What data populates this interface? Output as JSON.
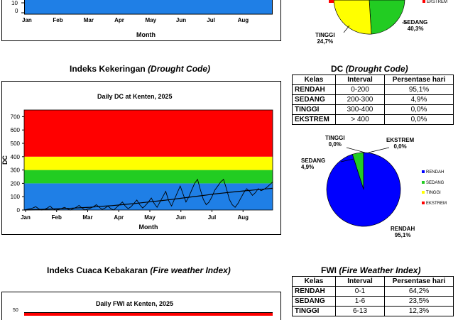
{
  "colors": {
    "blue": "#1f7fe6",
    "green": "#22cc22",
    "yellow": "#ffff00",
    "red": "#ff0000",
    "pie_blue": "#0000ff"
  },
  "top_chart": {
    "x_ticks": [
      "Jan",
      "Feb",
      "Mar",
      "Apr",
      "May",
      "Jun",
      "Jul",
      "Aug"
    ],
    "xlabel": "Month",
    "y_tick": "10",
    "y_tick2": "0"
  },
  "top_pie": {
    "labels": [
      {
        "name": "TINGGI",
        "pct": "24,7%"
      },
      {
        "name": "SEDANG",
        "pct": "40,3%"
      }
    ],
    "legend_partial": "EKSTREM"
  },
  "dc": {
    "section_title": "Indeks Kekeringan",
    "section_title_it": "(Drought Code)",
    "table_title": "DC",
    "table_title_it": "(Drought Code)",
    "headers": [
      "Kelas",
      "Interval",
      "Persentase hari"
    ],
    "rows": [
      [
        "RENDAH",
        "0-200",
        "95,1%"
      ],
      [
        "SEDANG",
        "200-300",
        "4,9%"
      ],
      [
        "TINGGI",
        "300-400",
        "0,0%"
      ],
      [
        "EKSTREM",
        "> 400",
        "0,0%"
      ]
    ],
    "pie_labels": [
      {
        "name": "TINGGI",
        "pct": "0,0%"
      },
      {
        "name": "EKSTREM",
        "pct": "0,0%"
      },
      {
        "name": "SEDANG",
        "pct": "4,9%"
      },
      {
        "name": "RENDAH",
        "pct": "95,1%"
      }
    ],
    "legend": [
      "RENDAH",
      "SEDANG",
      "TINGGI",
      "EKSTREM"
    ]
  },
  "fwi": {
    "section_title": "Indeks Cuaca Kebakaran",
    "section_title_it": "(Fire weather Index)",
    "table_title": "FWI",
    "table_title_it": "(Fire Weather Index)",
    "headers": [
      "Kelas",
      "Interval",
      "Persentase hari"
    ],
    "rows": [
      [
        "RENDAH",
        "0-1",
        "64,2%"
      ],
      [
        "SEDANG",
        "1-6",
        "23,5%"
      ],
      [
        "TINGGI",
        "6-13",
        "12,3%"
      ]
    ]
  },
  "chart_data": [
    {
      "type": "line",
      "title": "Daily DC at Kenten, 2025",
      "xlabel": "Month",
      "ylabel": "DC",
      "ylim": [
        0,
        750
      ],
      "yticks": [
        0,
        100,
        200,
        300,
        400,
        500,
        600,
        700
      ],
      "x_ticks": [
        "Jan",
        "Feb",
        "Mar",
        "Apr",
        "May",
        "Jun",
        "Jul",
        "Aug"
      ],
      "bands": [
        {
          "from": 0,
          "to": 200,
          "color": "#1f7fe6"
        },
        {
          "from": 200,
          "to": 300,
          "color": "#22cc22"
        },
        {
          "from": 300,
          "to": 400,
          "color": "#ffff00"
        },
        {
          "from": 400,
          "to": 750,
          "color": "#ff0000"
        }
      ],
      "series": [
        {
          "name": "",
          "values": [
            0,
            5,
            10,
            15,
            25,
            10,
            0,
            5,
            15,
            30,
            8,
            0,
            5,
            12,
            20,
            8,
            0,
            10,
            20,
            35,
            15,
            0,
            8,
            15,
            25,
            40,
            20,
            5,
            15,
            30,
            10,
            0,
            20,
            40,
            60,
            30,
            10,
            25,
            50,
            75,
            40,
            15,
            35,
            60,
            90,
            50,
            20,
            60,
            100,
            140,
            70,
            30,
            80,
            130,
            180,
            120,
            60,
            100,
            150,
            200,
            230,
            150,
            80,
            40,
            60,
            100,
            150,
            180,
            210,
            230,
            160,
            80,
            40,
            20,
            50,
            90,
            130,
            160,
            140,
            110,
            130,
            160,
            145,
            155,
            170,
            190,
            210
          ]
        },
        {
          "name": "",
          "values": [
            0,
            2,
            4,
            6,
            8,
            10,
            12,
            15,
            18,
            21,
            25,
            29,
            33,
            38,
            43,
            48,
            54,
            60,
            66,
            72,
            78,
            85,
            92,
            99,
            106,
            113,
            120,
            126,
            132,
            138,
            143,
            148,
            153,
            158,
            163
          ]
        }
      ]
    },
    {
      "type": "pie",
      "categories": [
        "RENDAH",
        "SEDANG",
        "TINGGI",
        "EKSTREM"
      ],
      "values": [
        95.1,
        4.9,
        0.0,
        0.0
      ]
    },
    {
      "type": "pie",
      "categories": [
        "SEDANG",
        "TINGGI",
        "EKSTREM"
      ],
      "values": [
        40.3,
        24.7,
        0.3
      ]
    },
    {
      "type": "line",
      "title": "Daily FWI at Kenten, 2025",
      "yticks": [
        50
      ]
    }
  ]
}
